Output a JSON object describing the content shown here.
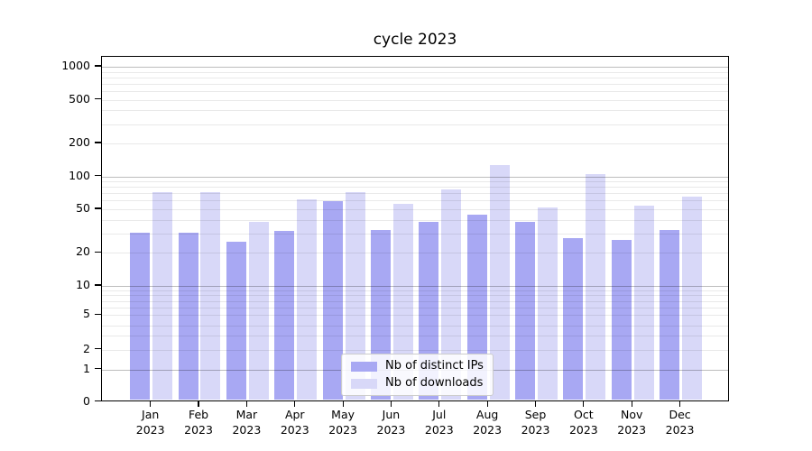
{
  "chart_data": {
    "type": "bar",
    "title": "cycle 2023",
    "categories": [
      "Jan 2023",
      "Feb 2023",
      "Mar 2023",
      "Apr 2023",
      "May 2023",
      "Jun 2023",
      "Jul 2023",
      "Aug 2023",
      "Sep 2023",
      "Oct 2023",
      "Nov 2023",
      "Dec 2023"
    ],
    "series": [
      {
        "name": "Nb of distinct IPs",
        "color": "#a8a8f3",
        "values": [
          30,
          30,
          25,
          31,
          58,
          32,
          38,
          44,
          38,
          27,
          26,
          32
        ]
      },
      {
        "name": "Nb of downloads",
        "color": "#d8d8f8",
        "values": [
          70,
          70,
          38,
          60,
          70,
          55,
          75,
          125,
          51,
          103,
          53,
          64
        ]
      }
    ],
    "yscale": "symlog",
    "yticks": [
      0,
      1,
      2,
      5,
      10,
      20,
      50,
      100,
      200,
      500,
      1000
    ],
    "ylim": [
      0,
      1300
    ],
    "xlabel": "",
    "ylabel": "",
    "grid": true,
    "legend_position": "lower center"
  }
}
